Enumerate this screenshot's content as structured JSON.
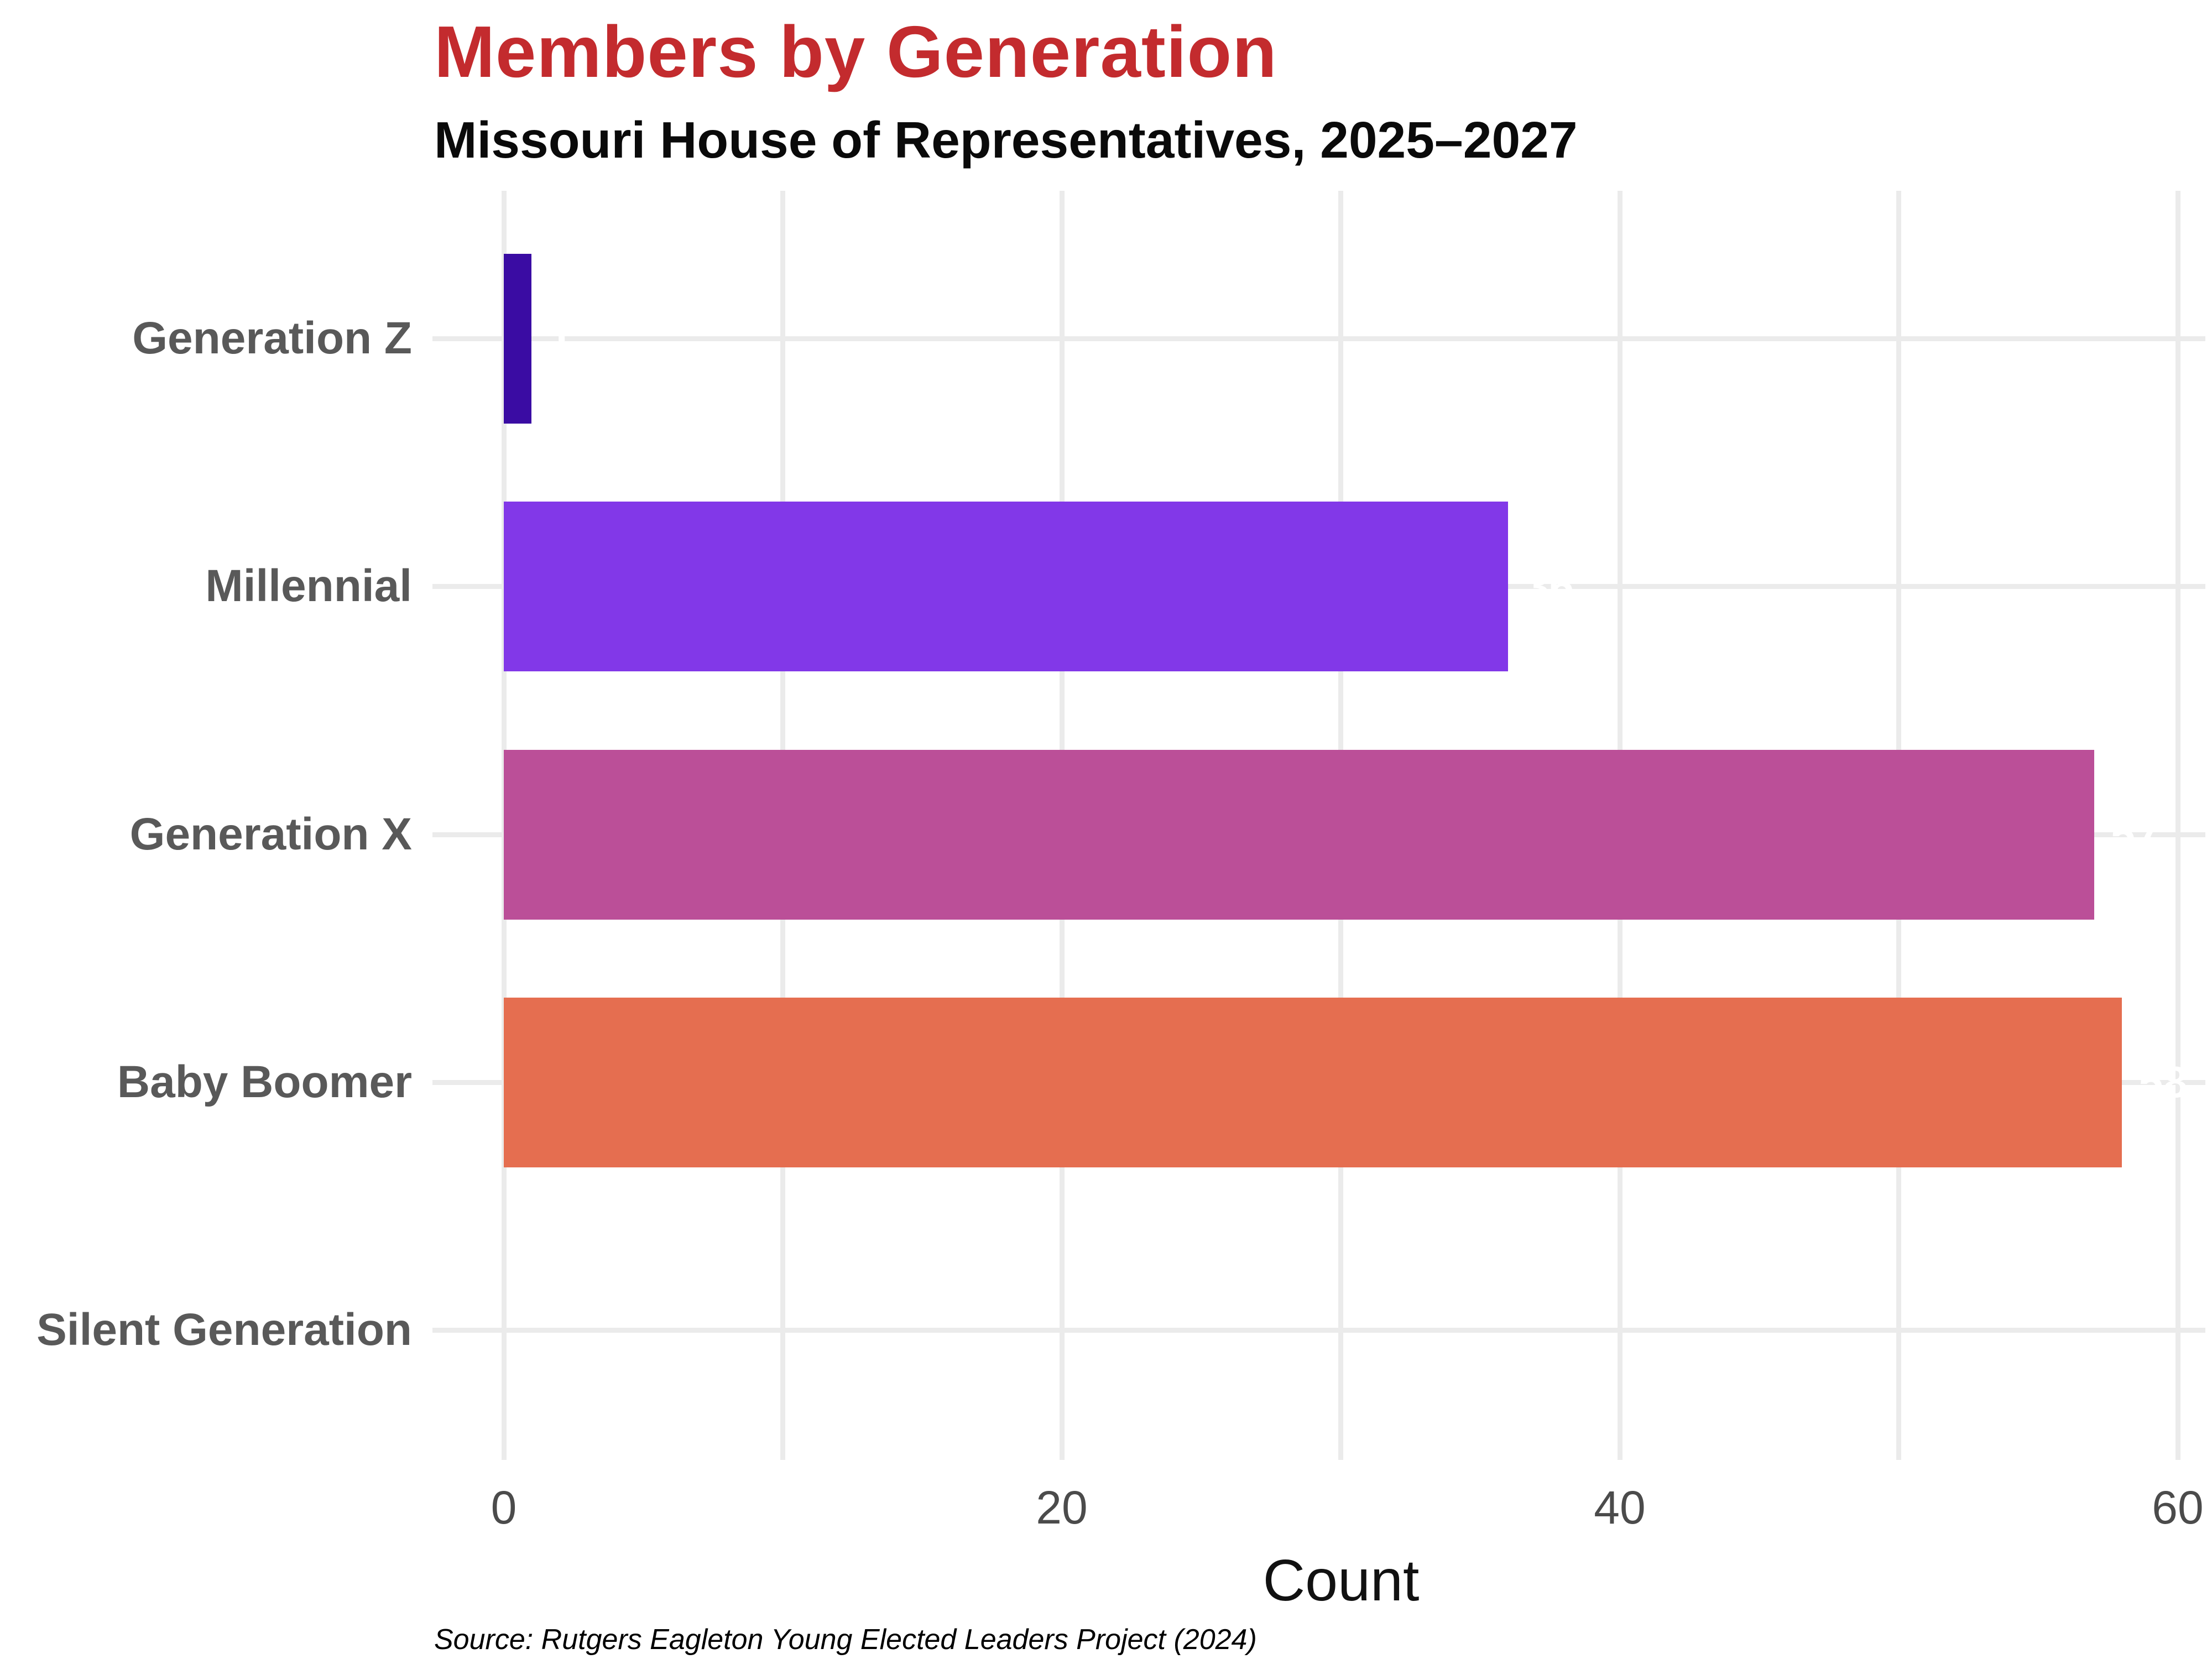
{
  "header": {
    "title": "Members by Generation",
    "subtitle": "Missouri House of Representatives, 2025–2027"
  },
  "footer": {
    "source": "Source: Rutgers Eagleton Young Elected Leaders Project (2024)"
  },
  "chart_data": {
    "type": "bar",
    "orientation": "horizontal",
    "title": "Members by Generation",
    "subtitle": "Missouri House of Representatives, 2025–2027",
    "xlabel": "Count",
    "ylabel": "",
    "categories": [
      "Generation Z",
      "Millennial",
      "Generation X",
      "Baby Boomer",
      "Silent Generation"
    ],
    "values": [
      1,
      36,
      57,
      58,
      0
    ],
    "value_labels": [
      "1",
      "36",
      "57",
      "58",
      ""
    ],
    "bar_colors": [
      "#3A0CA3",
      "#8238E8",
      "#BB4F98",
      "#E56E50",
      null
    ],
    "value_label_color": "#FFFFFF",
    "xlim": [
      0,
      60
    ],
    "x_gridlines": [
      0,
      10,
      20,
      30,
      40,
      50,
      60
    ],
    "x_ticks": [
      0,
      20,
      40,
      60
    ],
    "x_tick_labels": [
      "0",
      "20",
      "40",
      "60"
    ],
    "grid": "vertical-only, light gray, horizontal guide line per category",
    "legend": "none"
  },
  "colors": {
    "background": "#FFFFFF",
    "title": "#C32B2E",
    "subtitle": "#0A0A0A",
    "category_label": "#595959",
    "tick_label": "#4B4B4B",
    "axis_title": "#111111",
    "gridline": "#EBEBEB"
  }
}
